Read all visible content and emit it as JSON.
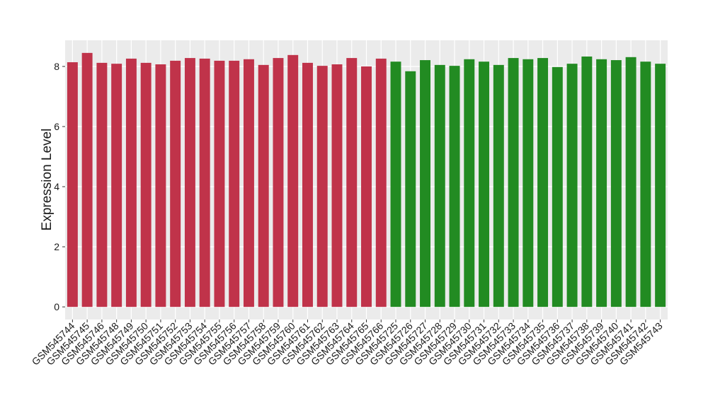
{
  "chart_data": {
    "type": "bar",
    "ylabel": "Expression Level",
    "categories": [
      "GSM545744",
      "GSM545745",
      "GSM545746",
      "GSM545748",
      "GSM545749",
      "GSM545750",
      "GSM545751",
      "GSM545752",
      "GSM545753",
      "GSM545754",
      "GSM545755",
      "GSM545756",
      "GSM545757",
      "GSM545758",
      "GSM545759",
      "GSM545760",
      "GSM545761",
      "GSM545762",
      "GSM545763",
      "GSM545764",
      "GSM545765",
      "GSM545766",
      "GSM545725",
      "GSM545726",
      "GSM545727",
      "GSM545728",
      "GSM545729",
      "GSM545730",
      "GSM545731",
      "GSM545732",
      "GSM545733",
      "GSM545734",
      "GSM545735",
      "GSM545736",
      "GSM545737",
      "GSM545738",
      "GSM545739",
      "GSM545740",
      "GSM545741",
      "GSM545742",
      "GSM545743"
    ],
    "values": [
      8.14,
      8.45,
      8.12,
      8.09,
      8.26,
      8.12,
      8.07,
      8.19,
      8.28,
      8.26,
      8.19,
      8.19,
      8.24,
      8.05,
      8.28,
      8.38,
      8.12,
      8.02,
      8.07,
      8.28,
      8.0,
      8.26,
      8.16,
      7.84,
      8.21,
      8.05,
      8.02,
      8.24,
      8.16,
      8.05,
      8.28,
      8.24,
      8.28,
      7.98,
      8.09,
      8.33,
      8.24,
      8.21,
      8.31,
      8.16,
      8.09
    ],
    "colors": [
      "#c0334a",
      "#c0334a",
      "#c0334a",
      "#c0334a",
      "#c0334a",
      "#c0334a",
      "#c0334a",
      "#c0334a",
      "#c0334a",
      "#c0334a",
      "#c0334a",
      "#c0334a",
      "#c0334a",
      "#c0334a",
      "#c0334a",
      "#c0334a",
      "#c0334a",
      "#c0334a",
      "#c0334a",
      "#c0334a",
      "#c0334a",
      "#c0334a",
      "#228b22",
      "#228b22",
      "#228b22",
      "#228b22",
      "#228b22",
      "#228b22",
      "#228b22",
      "#228b22",
      "#228b22",
      "#228b22",
      "#228b22",
      "#228b22",
      "#228b22",
      "#228b22",
      "#228b22",
      "#228b22",
      "#228b22",
      "#228b22",
      "#228b22"
    ],
    "ylim": [
      -0.42,
      8.87
    ],
    "yticks": [
      0,
      2,
      4,
      6,
      8
    ],
    "grid": true
  }
}
